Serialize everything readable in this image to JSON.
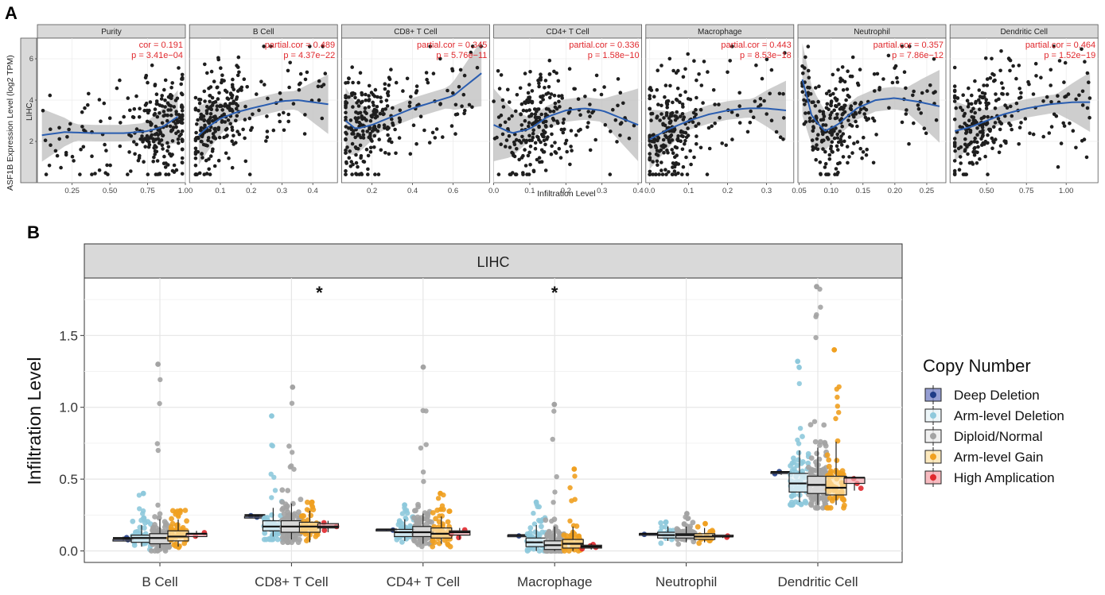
{
  "chart_data": [
    {
      "panel_label": "A",
      "type": "scatter",
      "ylabel": "ASF1B Expression Level (log2 TPM)",
      "xlabel": "Infiltration Level",
      "row_label": "LIHC",
      "ylim": [
        0,
        7
      ],
      "yticks": [
        2,
        4,
        6
      ],
      "facets": [
        {
          "name": "Purity",
          "stat_label": "cor = 0.191",
          "p_label": "p = 3.41e−04",
          "xlim": [
            0.02,
            1.0
          ],
          "xticks": [
            "0.25",
            "0.50",
            "0.75",
            "1.00"
          ],
          "xtick_values": [
            0.25,
            0.5,
            0.75,
            1.0
          ],
          "smooth_x": [
            0.05,
            0.2,
            0.4,
            0.6,
            0.75,
            0.85,
            0.95
          ],
          "smooth_y": [
            2.3,
            2.45,
            2.4,
            2.4,
            2.5,
            2.7,
            3.2
          ],
          "band": 0.4,
          "data_x_range": [
            0.05,
            0.98
          ],
          "cluster": 0.85
        },
        {
          "name": "B Cell",
          "stat_label": "partial.cor = 0.489",
          "p_label": "p = 4.37e−22",
          "xlim": [
            0.0,
            0.48
          ],
          "xticks": [
            "0.1",
            "0.2",
            "0.3",
            "0.4"
          ],
          "xtick_values": [
            0.1,
            0.2,
            0.3,
            0.4
          ],
          "smooth_x": [
            0.03,
            0.06,
            0.1,
            0.15,
            0.2,
            0.3,
            0.35,
            0.45
          ],
          "smooth_y": [
            2.3,
            2.7,
            3.1,
            3.4,
            3.6,
            3.95,
            4.0,
            3.8
          ],
          "band": 0.45,
          "data_x_range": [
            0.02,
            0.45
          ],
          "cluster": 0.08
        },
        {
          "name": "CD8+ T Cell",
          "stat_label": "partial.cor = 0.345",
          "p_label": "p = 5.76e−11",
          "xlim": [
            0.05,
            0.78
          ],
          "xticks": [
            "0.2",
            "0.4",
            "0.6"
          ],
          "xtick_values": [
            0.2,
            0.4,
            0.6
          ],
          "smooth_x": [
            0.07,
            0.12,
            0.2,
            0.3,
            0.4,
            0.5,
            0.6,
            0.74
          ],
          "smooth_y": [
            3.0,
            2.6,
            2.8,
            3.2,
            3.6,
            3.9,
            4.2,
            5.3
          ],
          "band": 0.5,
          "data_x_range": [
            0.07,
            0.74
          ],
          "cluster": 0.15
        },
        {
          "name": "CD4+ T Cell",
          "stat_label": "partial.cor = 0.336",
          "p_label": "p = 1.58e−10",
          "xlim": [
            0.0,
            0.41
          ],
          "xticks": [
            "0.0",
            "0.1",
            "0.2",
            "0.3",
            "0.4"
          ],
          "xtick_values": [
            0.0,
            0.1,
            0.2,
            0.3,
            0.4
          ],
          "smooth_x": [
            0.0,
            0.05,
            0.1,
            0.15,
            0.2,
            0.25,
            0.3,
            0.4
          ],
          "smooth_y": [
            2.8,
            2.4,
            2.6,
            3.2,
            3.5,
            3.6,
            3.5,
            2.8
          ],
          "band": 0.55,
          "data_x_range": [
            0.0,
            0.39
          ],
          "cluster": 0.12
        },
        {
          "name": "Macrophage",
          "stat_label": "partial.cor = 0.443",
          "p_label": "p = 8.53e−18",
          "xlim": [
            -0.01,
            0.37
          ],
          "xticks": [
            "0.0",
            "0.1",
            "0.2",
            "0.3"
          ],
          "xtick_values": [
            0.0,
            0.1,
            0.2,
            0.3
          ],
          "smooth_x": [
            0.0,
            0.05,
            0.1,
            0.15,
            0.2,
            0.25,
            0.3,
            0.35
          ],
          "smooth_y": [
            2.1,
            2.6,
            3.0,
            3.3,
            3.5,
            3.6,
            3.6,
            3.5
          ],
          "band": 0.45,
          "data_x_range": [
            0.0,
            0.35
          ],
          "cluster": 0.05
        },
        {
          "name": "Neutrophil",
          "stat_label": "partial.cor = 0.357",
          "p_label": "p = 7.86e−12",
          "xlim": [
            0.048,
            0.28
          ],
          "xticks": [
            "0.05",
            "0.10",
            "0.15",
            "0.20",
            "0.25"
          ],
          "xtick_values": [
            0.05,
            0.1,
            0.15,
            0.2,
            0.25
          ],
          "smooth_x": [
            0.055,
            0.07,
            0.09,
            0.11,
            0.14,
            0.17,
            0.2,
            0.24,
            0.27
          ],
          "smooth_y": [
            5.0,
            3.2,
            2.5,
            2.8,
            3.6,
            4.0,
            4.1,
            3.9,
            3.7
          ],
          "band": 0.55,
          "data_x_range": [
            0.055,
            0.27
          ],
          "cluster": 0.1
        },
        {
          "name": "Dendritic Cell",
          "stat_label": "partial.cor = 0.464",
          "p_label": "p = 1.52e−19",
          "xlim": [
            0.27,
            1.2
          ],
          "xticks": [
            "0.50",
            "0.75",
            "1.00"
          ],
          "xtick_values": [
            0.5,
            0.75,
            1.0
          ],
          "smooth_x": [
            0.3,
            0.4,
            0.5,
            0.6,
            0.75,
            0.9,
            1.05,
            1.15
          ],
          "smooth_y": [
            2.5,
            2.7,
            3.0,
            3.3,
            3.6,
            3.8,
            3.9,
            3.9
          ],
          "band": 0.45,
          "data_x_range": [
            0.3,
            1.15
          ],
          "cluster": 0.45
        }
      ]
    },
    {
      "panel_label": "B",
      "type": "box",
      "facet_title": "LIHC",
      "ylabel": "Infiltration Level",
      "ylim": [
        -0.08,
        1.9
      ],
      "yticks": [
        0.0,
        0.5,
        1.0,
        1.5
      ],
      "ytick_labels": [
        "0.0",
        "0.5",
        "1.0",
        "1.5"
      ],
      "categories": [
        "B Cell",
        "CD8+ T Cell",
        "CD4+ T Cell",
        "Macrophage",
        "Neutrophil",
        "Dendritic Cell"
      ],
      "significance": [
        "",
        "*",
        "",
        "*",
        "",
        ""
      ],
      "legend_title": "Copy Number",
      "series": [
        {
          "name": "Deep Deletion",
          "color": "#1f3c88",
          "fill": "#7b86c8",
          "stats": [
            [
              0.07,
              0.08,
              0.09,
              0.08,
              0.1
            ],
            [
              0.23,
              0.24,
              0.25,
              0.24,
              0.25
            ],
            [
              0.14,
              0.15,
              0.15,
              0.15,
              0.15
            ],
            [
              0.1,
              0.11,
              0.11,
              0.11,
              0.11
            ],
            [
              0.11,
              0.12,
              0.12,
              0.12,
              0.12
            ],
            [
              0.53,
              0.54,
              0.55,
              0.55,
              0.56
            ]
          ],
          "n": [
            2,
            2,
            1,
            1,
            1,
            2
          ],
          "max_outlier": [
            null,
            null,
            null,
            null,
            null,
            null
          ]
        },
        {
          "name": "Arm-level Deletion",
          "color": "#8ec9dc",
          "fill": "#e8f4f8",
          "stats": [
            [
              0.03,
              0.06,
              0.09,
              0.11,
              0.18
            ],
            [
              0.1,
              0.14,
              0.17,
              0.21,
              0.3
            ],
            [
              0.07,
              0.1,
              0.13,
              0.15,
              0.22
            ],
            [
              0.0,
              0.03,
              0.06,
              0.09,
              0.18
            ],
            [
              0.07,
              0.09,
              0.11,
              0.13,
              0.17
            ],
            [
              0.34,
              0.41,
              0.47,
              0.54,
              0.7
            ]
          ],
          "n": [
            40,
            50,
            40,
            40,
            25,
            70
          ],
          "max_outlier": [
            0.4,
            0.94,
            0.32,
            0.34,
            0.2,
            1.32
          ]
        },
        {
          "name": "Diploid/Normal",
          "color": "#a3a3a3",
          "fill": "#ececec",
          "stats": [
            [
              0.02,
              0.05,
              0.09,
              0.12,
              0.22
            ],
            [
              0.08,
              0.13,
              0.17,
              0.21,
              0.33
            ],
            [
              0.05,
              0.1,
              0.13,
              0.17,
              0.26
            ],
            [
              0.0,
              0.01,
              0.04,
              0.07,
              0.17
            ],
            [
              0.06,
              0.09,
              0.11,
              0.12,
              0.17
            ],
            [
              0.32,
              0.4,
              0.46,
              0.52,
              0.72
            ]
          ],
          "n": [
            90,
            110,
            100,
            100,
            80,
            120
          ],
          "max_outlier": [
            1.3,
            1.14,
            1.28,
            1.02,
            0.26,
            1.84
          ]
        },
        {
          "name": "Arm-level Gain",
          "color": "#f0a020",
          "fill": "#fde3ad",
          "stats": [
            [
              0.03,
              0.07,
              0.1,
              0.14,
              0.22
            ],
            [
              0.06,
              0.13,
              0.17,
              0.2,
              0.28
            ],
            [
              0.05,
              0.09,
              0.12,
              0.16,
              0.24
            ],
            [
              0.0,
              0.02,
              0.05,
              0.08,
              0.17
            ],
            [
              0.06,
              0.08,
              0.1,
              0.12,
              0.16
            ],
            [
              0.32,
              0.39,
              0.44,
              0.52,
              0.76
            ]
          ],
          "n": [
            40,
            35,
            40,
            40,
            15,
            60
          ],
          "max_outlier": [
            0.28,
            0.34,
            0.4,
            0.57,
            0.19,
            1.4
          ]
        },
        {
          "name": "High Amplication",
          "color": "#e0282d",
          "fill": "#f6aab0",
          "stats": [
            [
              0.09,
              0.1,
              0.12,
              0.12,
              0.14
            ],
            [
              0.13,
              0.16,
              0.17,
              0.19,
              0.21
            ],
            [
              0.08,
              0.11,
              0.13,
              0.14,
              0.16
            ],
            [
              0.01,
              0.02,
              0.03,
              0.04,
              0.05
            ],
            [
              0.09,
              0.1,
              0.1,
              0.11,
              0.11
            ],
            [
              0.42,
              0.47,
              0.51,
              0.51,
              0.52
            ]
          ],
          "n": [
            2,
            3,
            3,
            4,
            2,
            3
          ],
          "max_outlier": [
            null,
            null,
            null,
            null,
            null,
            null
          ]
        }
      ]
    }
  ]
}
